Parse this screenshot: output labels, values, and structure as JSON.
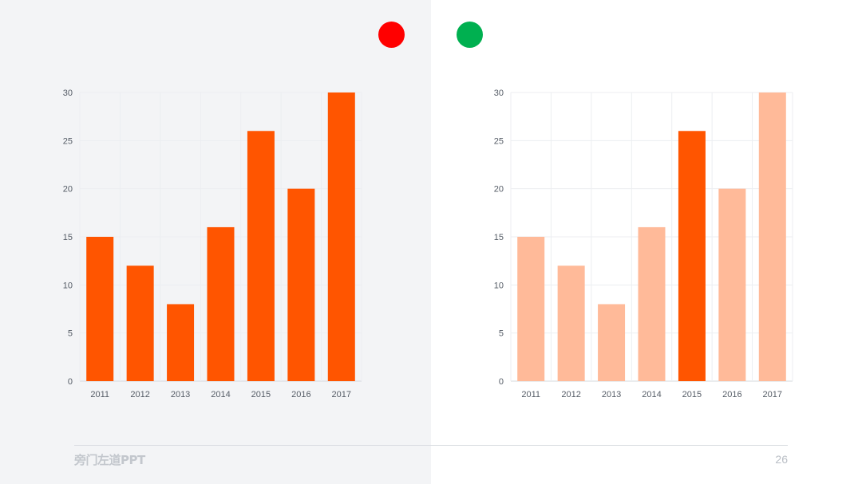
{
  "indicators": {
    "bad_color": "#ff0000",
    "good_color": "#00b050"
  },
  "colors": {
    "bar_primary": "#ff5500",
    "bar_muted": "#ffba99",
    "highlight": "#ff5500"
  },
  "chart_data": [
    {
      "type": "bar",
      "categories": [
        "2011",
        "2012",
        "2013",
        "2014",
        "2015",
        "2016",
        "2017"
      ],
      "values": [
        15,
        12,
        8,
        16,
        26,
        20,
        30
      ],
      "ylim": [
        0,
        30
      ],
      "yticks": [
        0,
        5,
        10,
        15,
        20,
        25,
        30
      ],
      "grid": true,
      "highlight_index": null
    },
    {
      "type": "bar",
      "categories": [
        "2011",
        "2012",
        "2013",
        "2014",
        "2015",
        "2016",
        "2017"
      ],
      "values": [
        15,
        12,
        8,
        16,
        26,
        20,
        30
      ],
      "ylim": [
        0,
        30
      ],
      "yticks": [
        0,
        5,
        10,
        15,
        20,
        25,
        30
      ],
      "grid": true,
      "highlight_index": 4
    }
  ],
  "footer": {
    "brand": "旁门左道PPT",
    "page_number": "26"
  }
}
